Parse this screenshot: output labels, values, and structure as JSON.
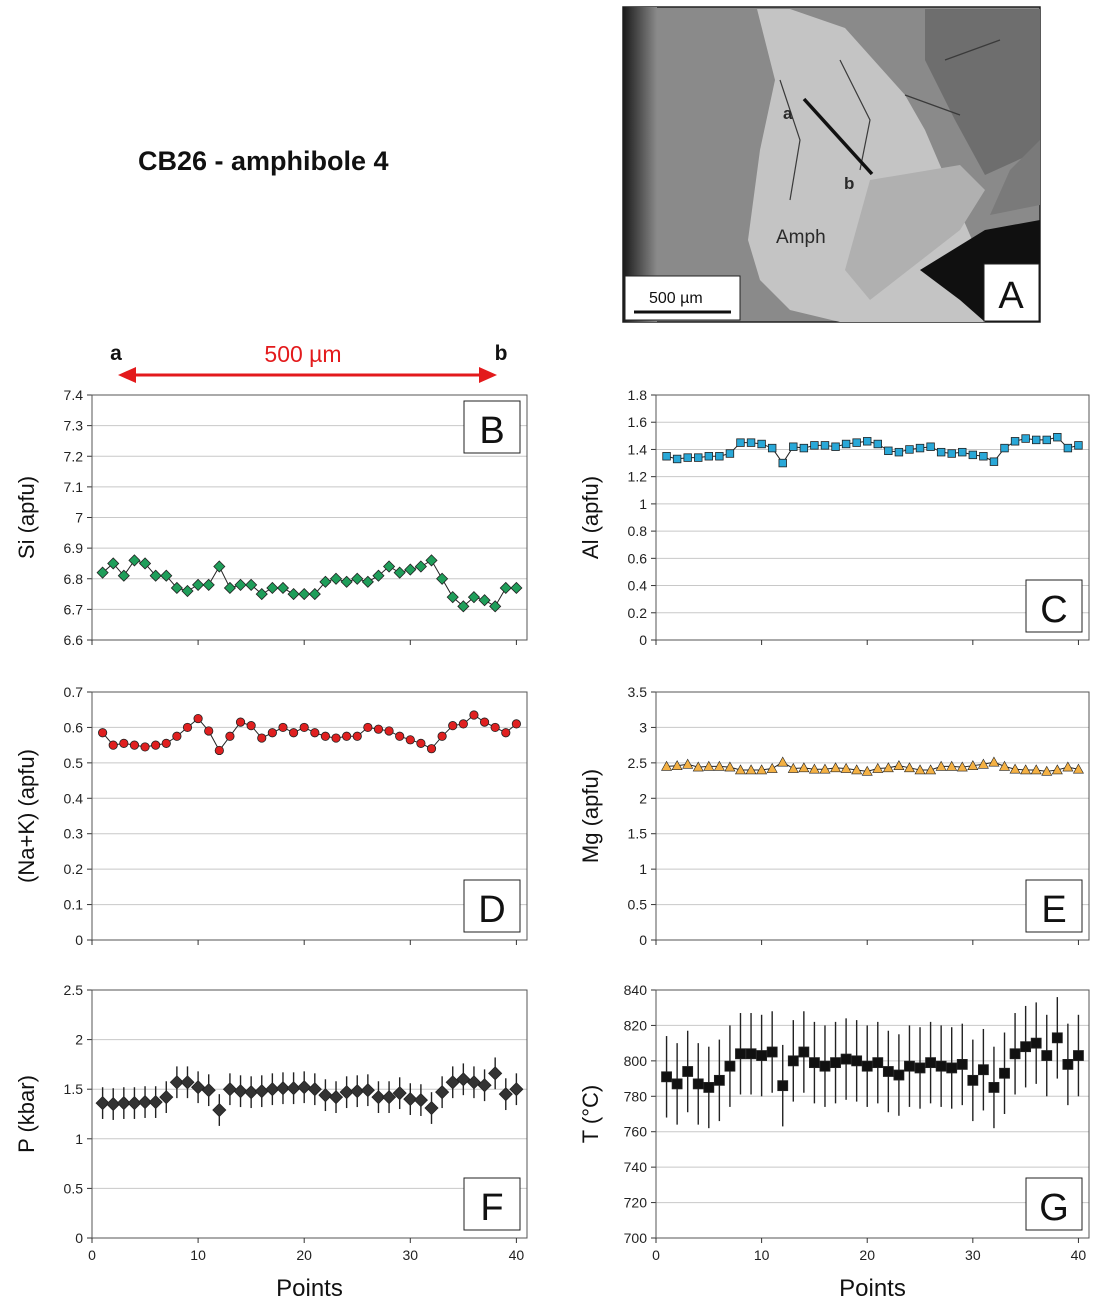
{
  "figure": {
    "title": "CB26 - amphibole 4",
    "profile": {
      "start_label": "a",
      "end_label": "b",
      "length_label": "500 µm",
      "color": "#e31a1c"
    },
    "image_panel": {
      "letter": "A",
      "labels": [
        "a",
        "b",
        "Amph"
      ],
      "scale_label": "500 µm"
    },
    "x_axis_label": "Points"
  },
  "chart_data": [
    {
      "id": "B",
      "type": "line",
      "ylabel": "Si (apfu)",
      "ylim": [
        6.6,
        7.4
      ],
      "yticks": [
        6.6,
        6.7,
        6.8,
        6.9,
        7,
        7.1,
        7.2,
        7.3,
        7.4
      ],
      "xlim": [
        0,
        41
      ],
      "xticks": [],
      "grid": true,
      "marker": "diamond",
      "color": "#1f9e5a",
      "x": [
        1,
        2,
        3,
        4,
        5,
        6,
        7,
        8,
        9,
        10,
        11,
        12,
        13,
        14,
        15,
        16,
        17,
        18,
        19,
        20,
        21,
        22,
        23,
        24,
        25,
        26,
        27,
        28,
        29,
        30,
        31,
        32,
        33,
        34,
        35,
        36,
        37,
        38,
        39,
        40
      ],
      "y": [
        6.82,
        6.85,
        6.81,
        6.86,
        6.85,
        6.81,
        6.81,
        6.77,
        6.76,
        6.78,
        6.78,
        6.84,
        6.77,
        6.78,
        6.78,
        6.75,
        6.77,
        6.77,
        6.75,
        6.75,
        6.75,
        6.79,
        6.8,
        6.79,
        6.8,
        6.79,
        6.81,
        6.84,
        6.82,
        6.83,
        6.84,
        6.86,
        6.8,
        6.74,
        6.71,
        6.74,
        6.73,
        6.71,
        6.77,
        6.77
      ]
    },
    {
      "id": "C",
      "type": "line",
      "ylabel": "Al (apfu)",
      "ylim": [
        0,
        1.8
      ],
      "yticks": [
        0,
        0.2,
        0.4,
        0.6,
        0.8,
        1,
        1.2,
        1.4,
        1.6,
        1.8
      ],
      "xlim": [
        0,
        41
      ],
      "xticks": [],
      "grid": true,
      "marker": "square",
      "color": "#29a8d8",
      "x": [
        1,
        2,
        3,
        4,
        5,
        6,
        7,
        8,
        9,
        10,
        11,
        12,
        13,
        14,
        15,
        16,
        17,
        18,
        19,
        20,
        21,
        22,
        23,
        24,
        25,
        26,
        27,
        28,
        29,
        30,
        31,
        32,
        33,
        34,
        35,
        36,
        37,
        38,
        39,
        40
      ],
      "y": [
        1.35,
        1.33,
        1.34,
        1.34,
        1.35,
        1.35,
        1.37,
        1.45,
        1.45,
        1.44,
        1.41,
        1.3,
        1.42,
        1.41,
        1.43,
        1.43,
        1.42,
        1.44,
        1.45,
        1.46,
        1.44,
        1.39,
        1.38,
        1.4,
        1.41,
        1.42,
        1.38,
        1.37,
        1.38,
        1.36,
        1.35,
        1.31,
        1.41,
        1.46,
        1.48,
        1.47,
        1.47,
        1.49,
        1.41,
        1.43
      ]
    },
    {
      "id": "D",
      "type": "line",
      "ylabel": "(Na+K) (apfu)",
      "ylim": [
        0,
        0.7
      ],
      "yticks": [
        0,
        0.1,
        0.2,
        0.3,
        0.4,
        0.5,
        0.6,
        0.7
      ],
      "xlim": [
        0,
        41
      ],
      "xticks": [],
      "grid": true,
      "marker": "circle",
      "color": "#e02020",
      "x": [
        1,
        2,
        3,
        4,
        5,
        6,
        7,
        8,
        9,
        10,
        11,
        12,
        13,
        14,
        15,
        16,
        17,
        18,
        19,
        20,
        21,
        22,
        23,
        24,
        25,
        26,
        27,
        28,
        29,
        30,
        31,
        32,
        33,
        34,
        35,
        36,
        37,
        38,
        39,
        40
      ],
      "y": [
        0.585,
        0.55,
        0.555,
        0.55,
        0.545,
        0.55,
        0.555,
        0.575,
        0.6,
        0.625,
        0.59,
        0.535,
        0.575,
        0.615,
        0.605,
        0.57,
        0.585,
        0.6,
        0.585,
        0.6,
        0.585,
        0.575,
        0.57,
        0.575,
        0.575,
        0.6,
        0.595,
        0.59,
        0.575,
        0.565,
        0.555,
        0.54,
        0.575,
        0.605,
        0.61,
        0.635,
        0.615,
        0.6,
        0.585,
        0.61
      ]
    },
    {
      "id": "E",
      "type": "line",
      "ylabel": "Mg (apfu)",
      "ylim": [
        0,
        3.5
      ],
      "yticks": [
        0,
        0.5,
        1,
        1.5,
        2,
        2.5,
        3,
        3.5
      ],
      "xlim": [
        0,
        41
      ],
      "xticks": [],
      "grid": true,
      "marker": "triangle",
      "color": "#f4b144",
      "x": [
        1,
        2,
        3,
        4,
        5,
        6,
        7,
        8,
        9,
        10,
        11,
        12,
        13,
        14,
        15,
        16,
        17,
        18,
        19,
        20,
        21,
        22,
        23,
        24,
        25,
        26,
        27,
        28,
        29,
        30,
        31,
        32,
        33,
        34,
        35,
        36,
        37,
        38,
        39,
        40
      ],
      "y": [
        2.45,
        2.46,
        2.48,
        2.44,
        2.45,
        2.45,
        2.44,
        2.4,
        2.4,
        2.4,
        2.42,
        2.51,
        2.42,
        2.43,
        2.41,
        2.41,
        2.43,
        2.42,
        2.4,
        2.38,
        2.42,
        2.43,
        2.46,
        2.43,
        2.4,
        2.4,
        2.45,
        2.45,
        2.44,
        2.46,
        2.48,
        2.51,
        2.45,
        2.41,
        2.4,
        2.4,
        2.38,
        2.4,
        2.44,
        2.41
      ]
    },
    {
      "id": "F",
      "type": "scatter",
      "ylabel": "P (kbar)",
      "xlabel": "Points",
      "ylim": [
        0,
        2.5
      ],
      "yticks": [
        0,
        0.5,
        1,
        1.5,
        2,
        2.5
      ],
      "xlim": [
        0,
        41
      ],
      "xticks": [
        0,
        10,
        20,
        30,
        40
      ],
      "grid": true,
      "marker": "diamond",
      "color": "#333333",
      "error_bars": true,
      "x": [
        1,
        2,
        3,
        4,
        5,
        6,
        7,
        8,
        9,
        10,
        11,
        12,
        13,
        14,
        15,
        16,
        17,
        18,
        19,
        20,
        21,
        22,
        23,
        24,
        25,
        26,
        27,
        28,
        29,
        30,
        31,
        32,
        33,
        34,
        35,
        36,
        37,
        38,
        39,
        40
      ],
      "y": [
        1.36,
        1.35,
        1.36,
        1.36,
        1.37,
        1.37,
        1.42,
        1.57,
        1.57,
        1.52,
        1.49,
        1.29,
        1.5,
        1.48,
        1.47,
        1.48,
        1.5,
        1.51,
        1.51,
        1.52,
        1.5,
        1.44,
        1.42,
        1.47,
        1.48,
        1.49,
        1.42,
        1.42,
        1.46,
        1.4,
        1.39,
        1.31,
        1.47,
        1.57,
        1.6,
        1.57,
        1.54,
        1.66,
        1.45,
        1.5
      ],
      "err": 0.16
    },
    {
      "id": "G",
      "type": "scatter",
      "ylabel": "T (°C)",
      "xlabel": "Points",
      "ylim": [
        700,
        840
      ],
      "yticks": [
        700,
        720,
        740,
        760,
        780,
        800,
        820,
        840
      ],
      "xlim": [
        0,
        41
      ],
      "xticks": [
        0,
        10,
        20,
        30,
        40
      ],
      "grid": true,
      "marker": "square",
      "color": "#111111",
      "error_bars": true,
      "x": [
        1,
        2,
        3,
        4,
        5,
        6,
        7,
        8,
        9,
        10,
        11,
        12,
        13,
        14,
        15,
        16,
        17,
        18,
        19,
        20,
        21,
        22,
        23,
        24,
        25,
        26,
        27,
        28,
        29,
        30,
        31,
        32,
        33,
        34,
        35,
        36,
        37,
        38,
        39,
        40
      ],
      "y": [
        791,
        787,
        794,
        787,
        785,
        789,
        797,
        804,
        804,
        803,
        805,
        786,
        800,
        805,
        799,
        797,
        799,
        801,
        800,
        797,
        799,
        794,
        792,
        797,
        796,
        799,
        797,
        796,
        798,
        789,
        795,
        785,
        793,
        804,
        808,
        810,
        803,
        813,
        798,
        803
      ],
      "err": 23
    }
  ]
}
